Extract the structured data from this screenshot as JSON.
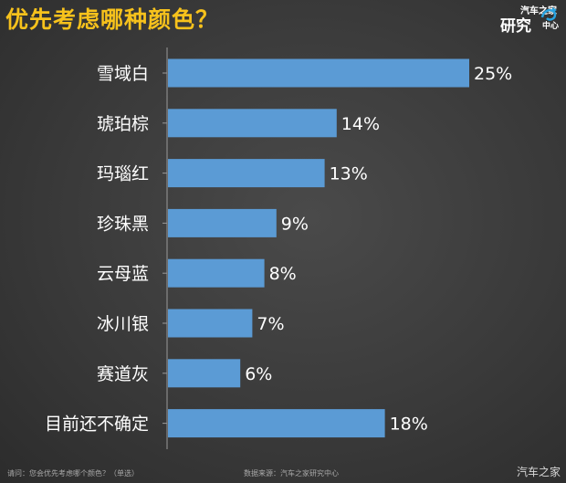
{
  "title": "优先考虑哪种颜色？",
  "logo": {
    "line1": "汽车之家",
    "line2": "研究",
    "line3": "中心"
  },
  "footer": {
    "question": "请问：您会优先考虑哪个颜色？（单选）",
    "source": "数据来源：汽车之家研究中心"
  },
  "watermark": "汽车之家",
  "colors": {
    "bar": "#5b9bd5",
    "title": "#f7c21c",
    "background": "#3a3a3a"
  },
  "chart_data": {
    "type": "bar",
    "orientation": "horizontal",
    "categories": [
      "雪域白",
      "琥珀棕",
      "玛瑙红",
      "珍珠黑",
      "云母蓝",
      "冰川银",
      "赛道灰",
      "目前还不确定"
    ],
    "values": [
      25,
      14,
      13,
      9,
      8,
      7,
      6,
      18
    ],
    "value_labels": [
      "25%",
      "14%",
      "13%",
      "9%",
      "8%",
      "7%",
      "6%",
      "18%"
    ],
    "unit": "%",
    "xlim": [
      0,
      25
    ],
    "grid": false,
    "legend": "none"
  }
}
